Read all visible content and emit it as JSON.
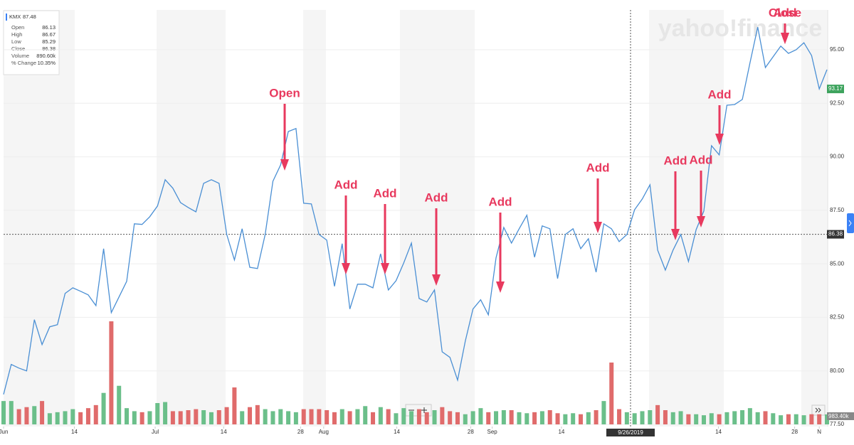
{
  "chart_data": {
    "type": "line",
    "symbol": "KMX",
    "symbol_price": "87.48",
    "watermark": "yahoo!finance",
    "tooltip": [
      [
        "Open",
        "86.13"
      ],
      [
        "High",
        "86.67"
      ],
      [
        "Low",
        "85.29"
      ],
      [
        "Close",
        "86.38"
      ],
      [
        "Volume",
        "890.60k"
      ],
      [
        "% Change",
        "10.35%"
      ]
    ],
    "color": "#4a8fd4",
    "values": [
      78.9,
      80.3,
      80.13,
      80.0,
      82.39,
      81.23,
      82.06,
      82.16,
      83.62,
      83.88,
      83.72,
      83.55,
      83.05,
      85.71,
      82.72,
      83.45,
      84.18,
      86.87,
      86.84,
      87.2,
      87.7,
      88.93,
      88.53,
      87.86,
      87.63,
      87.43,
      88.76,
      88.93,
      88.76,
      86.37,
      85.18,
      86.64,
      84.84,
      84.78,
      86.37,
      88.86,
      89.62,
      91.18,
      91.32,
      87.83,
      87.8,
      86.37,
      86.11,
      83.95,
      85.94,
      82.89,
      84.05,
      84.05,
      83.88,
      85.47,
      83.78,
      84.21,
      85.04,
      85.97,
      83.38,
      83.22,
      83.78,
      80.89,
      80.63,
      79.57,
      81.39,
      82.89,
      83.32,
      82.62,
      85.28,
      86.7,
      85.97,
      86.64,
      87.27,
      85.31,
      86.77,
      86.64,
      84.31,
      86.37,
      86.64,
      85.71,
      86.17,
      84.61,
      86.87,
      86.64,
      86.04,
      86.37,
      87.53,
      88.03,
      88.69,
      85.64,
      84.71,
      85.64,
      86.37,
      85.11,
      86.6,
      87.47,
      90.52,
      90.09,
      92.41,
      92.44,
      92.68,
      94.4,
      96.06,
      94.17,
      94.67,
      95.17,
      94.83,
      95.0,
      95.33,
      94.73,
      93.17,
      94.07
    ],
    "volume": [
      2300,
      2300,
      1500,
      1700,
      1800,
      2300,
      1100,
      1200,
      1300,
      1500,
      1200,
      1600,
      1900,
      3100,
      10150,
      3800,
      1600,
      1300,
      1200,
      1300,
      2100,
      2200,
      1300,
      1300,
      1400,
      1500,
      1400,
      1200,
      1400,
      1700,
      3640,
      1300,
      1700,
      1900,
      1500,
      1300,
      1500,
      1300,
      1200,
      1500,
      1500,
      1500,
      1400,
      1200,
      1500,
      1300,
      1500,
      1800,
      1200,
      1700,
      1500,
      1100,
      1600,
      1300,
      1500,
      1200,
      1400,
      1700,
      1300,
      1200,
      1000,
      1300,
      1600,
      1200,
      1300,
      1400,
      1400,
      1200,
      1100,
      1200,
      1300,
      1400,
      1100,
      1000,
      1100,
      1000,
      1200,
      1400,
      2300,
      6090,
      1500,
      1200,
      1100,
      1300,
      1400,
      1900,
      1400,
      1200,
      1300,
      1000,
      1000,
      900,
      1100,
      1000,
      1200,
      1300,
      1400,
      1600,
      1200,
      1300,
      1100,
      900,
      1000,
      1000,
      900,
      1000,
      1000,
      983.4
    ],
    "volume_label": "983.40k",
    "up_color": "#6bbf8a",
    "down_color": "#e06b6b",
    "xlim": [
      0,
      107
    ],
    "ylim": [
      77.5,
      96.86
    ],
    "vlim": [
      0,
      10500
    ],
    "yticks": [
      {
        "value": 77.5,
        "label": "77.50"
      },
      {
        "value": 80,
        "label": "80.00"
      },
      {
        "value": 82.5,
        "label": "82.50"
      },
      {
        "value": 85,
        "label": "85.00"
      },
      {
        "value": 87.5,
        "label": "87.50"
      },
      {
        "value": 90,
        "label": "90.00"
      },
      {
        "value": 92.5,
        "label": "92.50"
      },
      {
        "value": 95,
        "label": "95.00"
      }
    ],
    "xticks": [
      {
        "value": 0,
        "label": "Jun"
      },
      {
        "value": 9.2,
        "label": "14"
      },
      {
        "value": 19.7,
        "label": "Jul"
      },
      {
        "value": 28.6,
        "label": "14"
      },
      {
        "value": 38.6,
        "label": "28"
      },
      {
        "value": 41.6,
        "label": "Aug"
      },
      {
        "value": 51.1,
        "label": "14"
      },
      {
        "value": 60.7,
        "label": "28"
      },
      {
        "value": 63.5,
        "label": "Sep"
      },
      {
        "value": 72.5,
        "label": "14"
      },
      {
        "value": 92.9,
        "label": "14"
      },
      {
        "value": 102.8,
        "label": "28"
      },
      {
        "value": 106,
        "label": "N"
      }
    ],
    "crosshair": {
      "date": "9/26/2019",
      "price": 86.38
    },
    "annotations": [
      "Open",
      "Add",
      "Add",
      "Add",
      "Add",
      "Add",
      "Add",
      "Add",
      "Add",
      "Add",
      "Close"
    ],
    "grid": true
  }
}
